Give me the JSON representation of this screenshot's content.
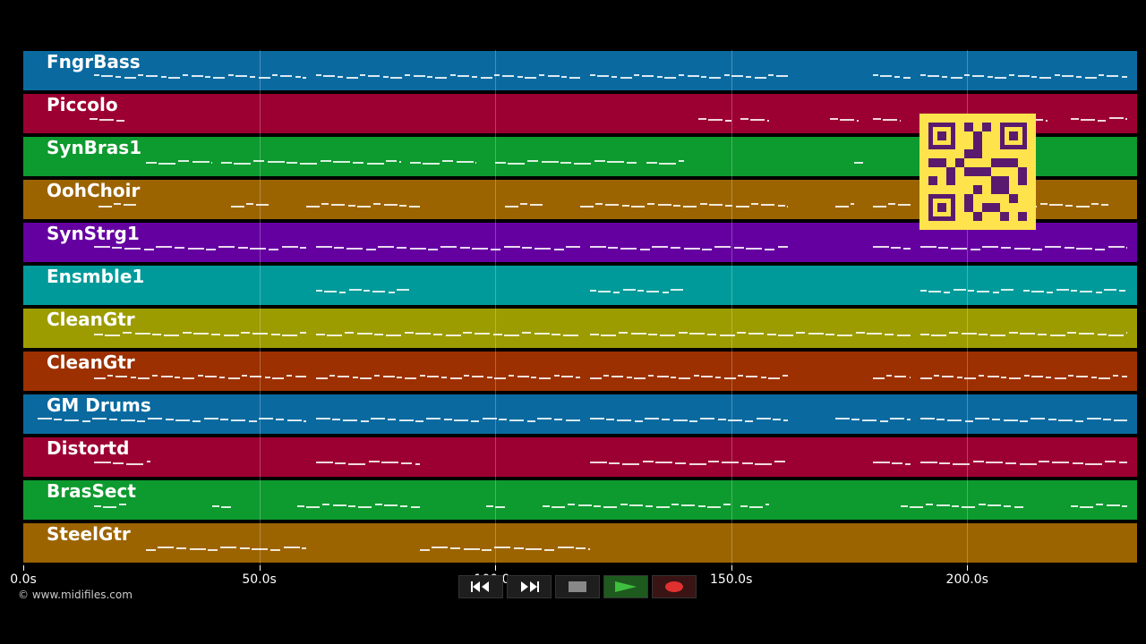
{
  "tracks": [
    {
      "label": "FngrBass",
      "color": "#0a6aa0"
    },
    {
      "label": "Piccolo",
      "color": "#9c0032"
    },
    {
      "label": "SynBras1",
      "color": "#0d9a2e"
    },
    {
      "label": "OohChoir",
      "color": "#9c6400"
    },
    {
      "label": "SynStrg1",
      "color": "#6500a0"
    },
    {
      "label": "Ensmble1",
      "color": "#019a9a"
    },
    {
      "label": "CleanGtr",
      "color": "#9c9c00"
    },
    {
      "label": "CleanGtr",
      "color": "#9c3000"
    },
    {
      "label": "GM Drums",
      "color": "#0a6aa0"
    },
    {
      "label": "Distortd",
      "color": "#9c0032"
    },
    {
      "label": "BrasSect",
      "color": "#0d9a2e"
    },
    {
      "label": "SteelGtr",
      "color": "#9c6400"
    }
  ],
  "axis": {
    "max_seconds": 236,
    "ticks": [
      {
        "value": 0,
        "label": "0.0s"
      },
      {
        "value": 50,
        "label": "50.0s"
      },
      {
        "value": 100,
        "label": "100.0s"
      },
      {
        "value": 150,
        "label": "150.0s"
      },
      {
        "value": 200,
        "label": "200.0s"
      }
    ]
  },
  "copyright": "© www.midifiles.com",
  "controls": [
    {
      "name": "rewind",
      "icon": "rewind-icon"
    },
    {
      "name": "fast-forward",
      "icon": "fast-forward-icon"
    },
    {
      "name": "stop",
      "icon": "stop-icon"
    },
    {
      "name": "play",
      "icon": "play-icon"
    },
    {
      "name": "record",
      "icon": "record-icon"
    }
  ],
  "note_segments": [
    [
      [
        15,
        60
      ],
      [
        62,
        118
      ],
      [
        120,
        162
      ],
      [
        180,
        188
      ],
      [
        190,
        234
      ]
    ],
    [
      [
        14,
        22
      ],
      [
        143,
        150
      ],
      [
        152,
        158
      ],
      [
        171,
        177
      ],
      [
        180,
        186
      ],
      [
        211,
        217
      ],
      [
        222,
        234
      ]
    ],
    [
      [
        26,
        40
      ],
      [
        42,
        80
      ],
      [
        82,
        96
      ],
      [
        100,
        130
      ],
      [
        132,
        140
      ],
      [
        176,
        178
      ]
    ],
    [
      [
        16,
        24
      ],
      [
        44,
        52
      ],
      [
        60,
        84
      ],
      [
        102,
        110
      ],
      [
        118,
        162
      ],
      [
        172,
        176
      ],
      [
        180,
        188
      ],
      [
        190,
        230
      ]
    ],
    [
      [
        15,
        60
      ],
      [
        62,
        118
      ],
      [
        120,
        162
      ],
      [
        180,
        188
      ],
      [
        190,
        234
      ]
    ],
    [
      [
        62,
        82
      ],
      [
        120,
        140
      ],
      [
        190,
        210
      ],
      [
        212,
        234
      ]
    ],
    [
      [
        15,
        60
      ],
      [
        62,
        118
      ],
      [
        120,
        188
      ],
      [
        190,
        234
      ]
    ],
    [
      [
        15,
        60
      ],
      [
        62,
        118
      ],
      [
        120,
        162
      ],
      [
        180,
        188
      ],
      [
        190,
        234
      ]
    ],
    [
      [
        3,
        60
      ],
      [
        62,
        118
      ],
      [
        120,
        162
      ],
      [
        172,
        188
      ],
      [
        190,
        234
      ]
    ],
    [
      [
        15,
        27
      ],
      [
        62,
        84
      ],
      [
        120,
        162
      ],
      [
        180,
        188
      ],
      [
        190,
        234
      ]
    ],
    [
      [
        15,
        22
      ],
      [
        40,
        44
      ],
      [
        58,
        84
      ],
      [
        98,
        102
      ],
      [
        110,
        150
      ],
      [
        152,
        158
      ],
      [
        186,
        212
      ],
      [
        222,
        234
      ]
    ],
    [
      [
        26,
        60
      ],
      [
        84,
        120
      ]
    ]
  ]
}
